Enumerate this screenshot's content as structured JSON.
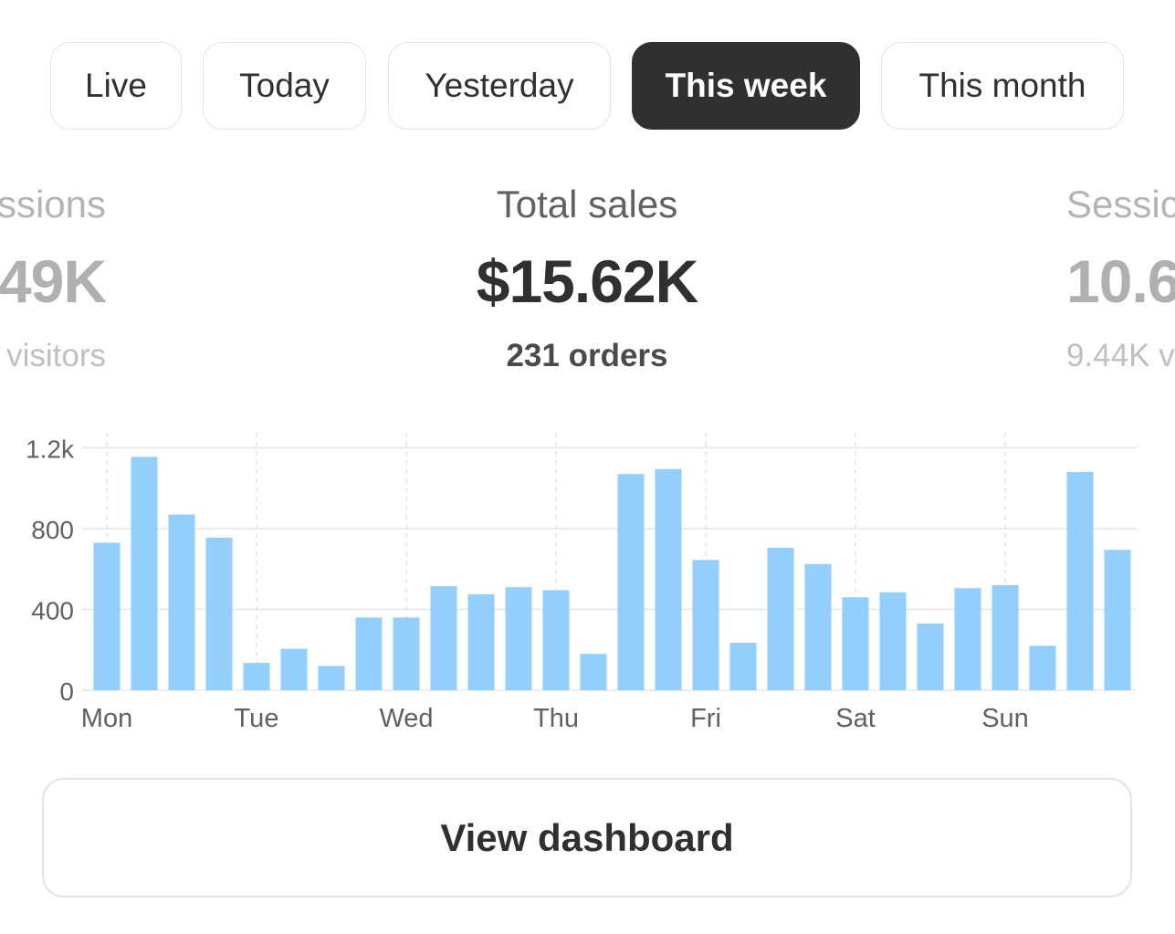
{
  "tabs": [
    {
      "label": "Live",
      "active": false
    },
    {
      "label": "Today",
      "active": false
    },
    {
      "label": "Yesterday",
      "active": false
    },
    {
      "label": "This week",
      "active": true
    },
    {
      "label": "This month",
      "active": false
    }
  ],
  "metrics": {
    "left": {
      "label": "ssions",
      "value": "49K",
      "sub": "visitors"
    },
    "center": {
      "label": "Total sales",
      "value": "$15.62K",
      "sub": "231 orders"
    },
    "right": {
      "label": "Sessic",
      "value": "10.6",
      "sub": "9.44K v"
    }
  },
  "chart_data": {
    "type": "bar",
    "title": "",
    "xlabel": "",
    "ylabel": "",
    "ylim": [
      0,
      1250
    ],
    "y_ticks": [
      0,
      400,
      800,
      1200
    ],
    "y_tick_labels": [
      "0",
      "400",
      "800",
      "1.2k"
    ],
    "x_day_labels": [
      "Mon",
      "Tue",
      "Wed",
      "Thu",
      "Fri",
      "Sat",
      "Sun"
    ],
    "bars_per_day": 4,
    "grid": true,
    "bar_color": "#92cffc",
    "series": [
      {
        "values": [
          730,
          1155,
          870,
          755,
          135,
          205,
          120,
          360,
          360,
          515,
          475,
          510,
          495,
          180,
          1070,
          1095,
          645,
          235,
          705,
          625,
          460,
          485,
          330,
          505,
          520,
          220,
          1080,
          695
        ]
      }
    ]
  },
  "cta": {
    "label": "View dashboard"
  }
}
